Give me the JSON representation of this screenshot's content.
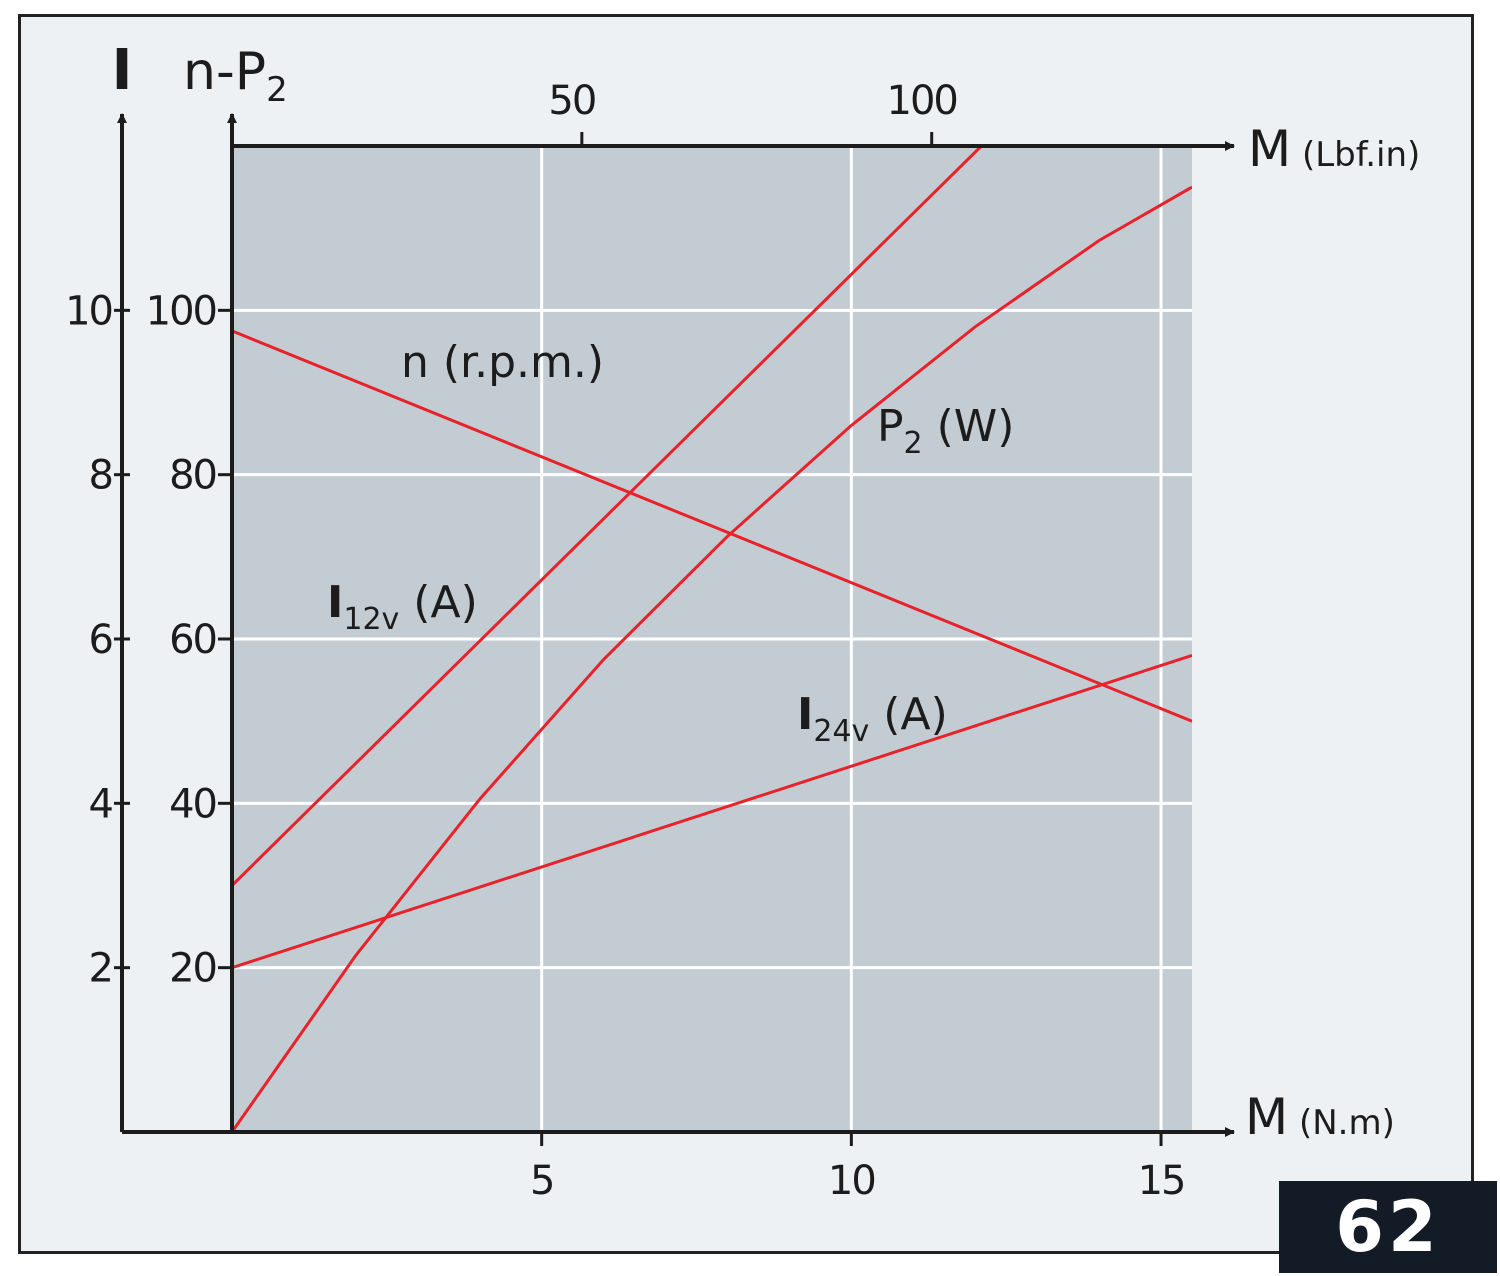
{
  "page_number": "62",
  "colors": {
    "plot_bg": "#c4ccd3",
    "grid": "#ffffff",
    "curve": "#e8222a",
    "axis": "#1c1c1c",
    "badge_bg": "#131b26"
  },
  "chart_data": {
    "type": "line",
    "grid": true,
    "x_axis": {
      "label": "M",
      "unit": "(N.m)",
      "range": [
        0,
        15.5
      ],
      "ticks": [
        5,
        10,
        15
      ]
    },
    "x2_axis": {
      "label": "M",
      "unit": "(Lbf.in)",
      "range": [
        0,
        137.2
      ],
      "ticks": [
        50,
        100
      ]
    },
    "y_left_axis": {
      "label": "I",
      "range": [
        0,
        12
      ],
      "ticks": [
        2,
        4,
        6,
        8,
        10
      ]
    },
    "y_right_axis": {
      "label": "n-",
      "label_main": "P",
      "label_sub": "2",
      "range": [
        0,
        120
      ],
      "ticks": [
        20,
        40,
        60,
        80,
        100
      ]
    },
    "series": [
      {
        "name": "n (r.p.m.)",
        "label_main": "n (r.p.m.)",
        "label_sub": "",
        "label_suffix": "",
        "axis": "right",
        "x": [
          0,
          15.5
        ],
        "y": [
          97.5,
          50
        ]
      },
      {
        "name": "P2 (W)",
        "label_main": "P",
        "label_sub": "2",
        "label_suffix": " (W)",
        "axis": "right",
        "x": [
          0,
          2,
          4,
          6,
          8,
          10,
          12,
          14,
          15.5
        ],
        "y": [
          0,
          21.5,
          40.5,
          57.5,
          72.5,
          86,
          98,
          108.5,
          115
        ]
      },
      {
        "name": "I12v (A)",
        "label_main": "I",
        "label_sub": "12v",
        "label_suffix": " (A)",
        "axis": "left",
        "x": [
          0,
          12.1
        ],
        "y": [
          3,
          12
        ]
      },
      {
        "name": "I24v (A)",
        "label_main": "I",
        "label_sub": "24v",
        "label_suffix": " (A)",
        "axis": "left",
        "x": [
          0,
          15.5
        ],
        "y": [
          2,
          5.8
        ]
      }
    ]
  }
}
